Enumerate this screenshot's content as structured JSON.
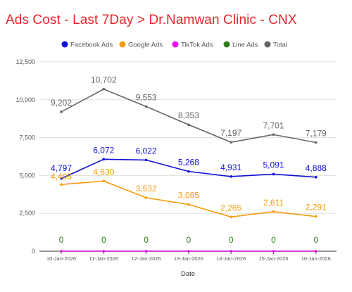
{
  "chart_data": {
    "type": "line",
    "title": "Ads Cost - Last 7Day > Dr.Namwan Clinic - CNX",
    "xlabel": "Date",
    "ylabel": "",
    "ylim": [
      0,
      12500
    ],
    "yticks": [
      0,
      2500,
      5000,
      7500,
      10000,
      12500
    ],
    "ytick_labels": [
      "0",
      "2,500",
      "5,000",
      "7,500",
      "10,000",
      "12,500"
    ],
    "grid": true,
    "legend_position": "top",
    "categories": [
      "10-Jan-2026",
      "11-Jan-2026",
      "12-Jan-2026",
      "13-Jan-2026",
      "14-Jan-2026",
      "15-Jan-2026",
      "16-Jan-2026"
    ],
    "series": [
      {
        "name": "Facebook Ads",
        "color": "#1010d8",
        "values": [
          4797,
          6072,
          6022,
          5268,
          4931,
          5091,
          4888
        ],
        "labels": [
          "4,797",
          "6,072",
          "6,022",
          "5,268",
          "4,931",
          "5,091",
          "4,888"
        ]
      },
      {
        "name": "Google Ads",
        "color": "#f59b0c",
        "values": [
          4405,
          4630,
          3532,
          3085,
          2265,
          2611,
          2291
        ],
        "labels": [
          "4,405",
          "4,630",
          "3,532",
          "3,085",
          "2,265",
          "2,611",
          "2,291"
        ]
      },
      {
        "name": "TikTok Ads",
        "color": "#ee10ee",
        "values": [
          0,
          0,
          0,
          0,
          0,
          0,
          0
        ],
        "labels": [
          "",
          "",
          "",
          "",
          "",
          "",
          ""
        ]
      },
      {
        "name": "Line Ads",
        "color": "#2e7d1a",
        "values": [
          0,
          0,
          0,
          0,
          0,
          0,
          0
        ],
        "labels": [
          "0",
          "0",
          "0",
          "0",
          "0",
          "0",
          "0"
        ]
      },
      {
        "name": "Total",
        "color": "#666666",
        "values": [
          9202,
          10702,
          9553,
          8353,
          7197,
          7701,
          7179
        ],
        "labels": [
          "9,202",
          "10,702",
          "9,553",
          "8,353",
          "7,197",
          "7,701",
          "7,179"
        ]
      }
    ]
  }
}
